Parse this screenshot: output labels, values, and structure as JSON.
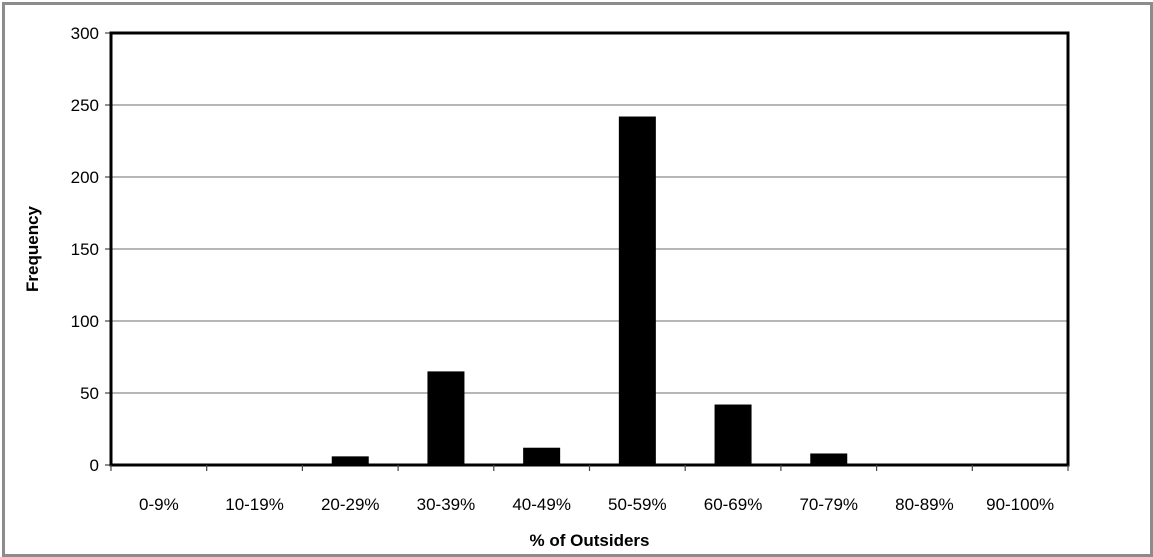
{
  "chart_data": {
    "type": "bar",
    "title": "",
    "xlabel": "% of Outsiders",
    "ylabel": "Frequency",
    "categories": [
      "0-9%",
      "10-19%",
      "20-29%",
      "30-39%",
      "40-49%",
      "50-59%",
      "60-69%",
      "70-79%",
      "80-89%",
      "90-100%"
    ],
    "values": [
      0,
      1,
      6,
      65,
      12,
      242,
      42,
      8,
      0,
      0
    ],
    "ylim": [
      0,
      300
    ],
    "yticks": [
      0,
      50,
      100,
      150,
      200,
      250,
      300
    ],
    "ytick_labels": [
      "0",
      "50",
      "100",
      "150",
      "200",
      "250",
      "300"
    ],
    "grid": true,
    "legend": "none",
    "colors": {
      "bar": "#000000",
      "grid": "#8c8c8c",
      "frame": "#8c8c8c",
      "plot_border": "#000000"
    }
  }
}
